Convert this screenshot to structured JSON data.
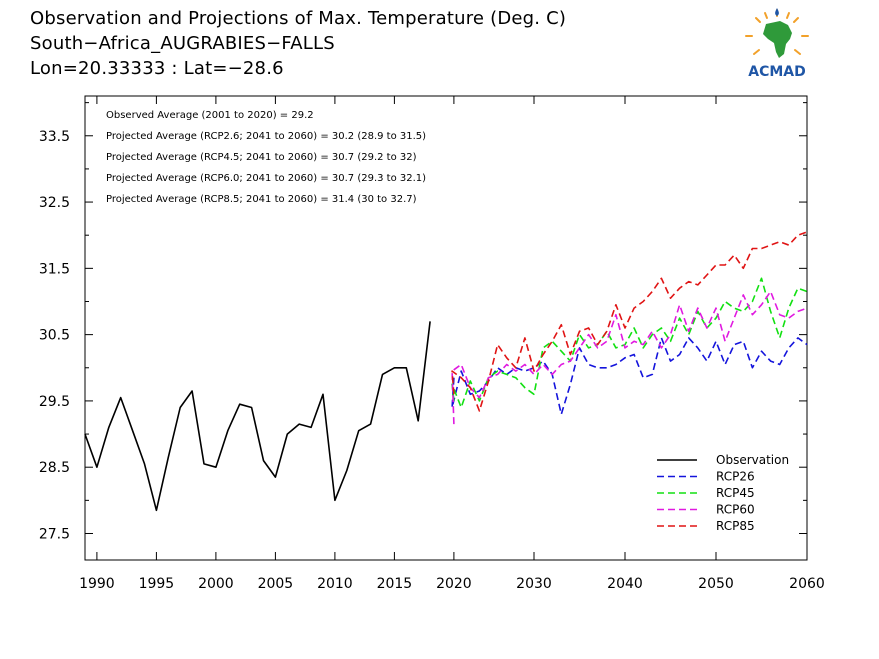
{
  "header": {
    "line1": "Observation and Projections of Max. Temperature (Deg. C)",
    "line2": "South−Africa_AUGRABIES−FALLS",
    "line3": "Lon=20.33333 : Lat=−28.6"
  },
  "logo": {
    "text": "ACMAD",
    "icon": "africa-sun-logo-icon"
  },
  "annotations": [
    "Observed Average (2001 to 2020) = 29.2",
    "Projected Average (RCP2.6; 2041 to 2060) = 30.2 (28.9 to 31.5)",
    "Projected Average (RCP4.5; 2041 to 2060) = 30.7 (29.2 to 32)",
    "Projected Average (RCP6.0; 2041 to 2060) = 30.7 (29.3 to 32.1)",
    "Projected Average (RCP8.5; 2041 to 2060) = 31.4 (30 to 32.7)"
  ],
  "chart_data": {
    "type": "line",
    "title": "Observation and Projections of Max. Temperature (Deg. C)",
    "xlabel": "",
    "ylabel": "",
    "ylim": [
      27.1,
      34.1
    ],
    "y_ticks": [
      "27.5",
      "28.5",
      "29.5",
      "30.5",
      "31.5",
      "32.5",
      "33.5"
    ],
    "x_ticks_left": [
      "1990",
      "1995",
      "2000",
      "2005",
      "2010",
      "2015",
      "2020"
    ],
    "x_ticks_right": [
      "2020",
      "2030",
      "2040",
      "2050",
      "2060"
    ],
    "legend_position": "bottom-right",
    "series": [
      {
        "name": "Observation",
        "color": "#000000",
        "style": "solid",
        "x": [
          1989,
          1990,
          1991,
          1992,
          1993,
          1994,
          1995,
          1996,
          1997,
          1998,
          1999,
          2000,
          2001,
          2002,
          2003,
          2004,
          2005,
          2006,
          2007,
          2008,
          2009,
          2010,
          2011,
          2012,
          2013,
          2014,
          2015,
          2016,
          2017,
          2018,
          2019
        ],
        "values": [
          29.0,
          28.5,
          29.1,
          29.55,
          29.05,
          28.55,
          27.85,
          28.65,
          29.4,
          29.65,
          28.55,
          28.5,
          29.05,
          29.45,
          29.4,
          28.6,
          28.35,
          29.0,
          29.15,
          29.1,
          29.6,
          28.0,
          28.45,
          29.05,
          29.15,
          29.9,
          30.0,
          30.0,
          29.2,
          30.7,
          null
        ]
      },
      {
        "name": "RCP26",
        "color": "#1414dc",
        "style": "dashed",
        "x": [
          2020,
          2021,
          2022,
          2023,
          2024,
          2025,
          2026,
          2027,
          2028,
          2029,
          2030,
          2031,
          2032,
          2033,
          2034,
          2035,
          2036,
          2037,
          2038,
          2039,
          2040,
          2041,
          2042,
          2043,
          2044,
          2045,
          2046,
          2047,
          2048,
          2049,
          2050,
          2051,
          2052,
          2053,
          2054,
          2055,
          2056,
          2057,
          2058,
          2059,
          2060
        ],
        "values": [
          29.85,
          29.4,
          29.95,
          29.6,
          29.65,
          29.8,
          30.0,
          29.9,
          30.0,
          29.95,
          30.0,
          30.1,
          29.9,
          29.3,
          29.75,
          30.3,
          30.05,
          30.0,
          30.0,
          30.05,
          30.15,
          30.2,
          29.85,
          29.9,
          30.45,
          30.1,
          30.2,
          30.45,
          30.3,
          30.1,
          30.4,
          30.05,
          30.35,
          30.4,
          30.0,
          30.25,
          30.1,
          30.05,
          30.3,
          30.45,
          30.35
        ]
      },
      {
        "name": "RCP45",
        "color": "#12e012",
        "style": "dashed",
        "x": [
          2020,
          2021,
          2022,
          2023,
          2024,
          2025,
          2026,
          2027,
          2028,
          2029,
          2030,
          2031,
          2032,
          2033,
          2034,
          2035,
          2036,
          2037,
          2038,
          2039,
          2040,
          2041,
          2042,
          2043,
          2044,
          2045,
          2046,
          2047,
          2048,
          2049,
          2050,
          2051,
          2052,
          2053,
          2054,
          2055,
          2056,
          2057,
          2058,
          2059,
          2060
        ],
        "values": [
          29.5,
          29.75,
          29.4,
          29.8,
          29.5,
          29.85,
          29.95,
          29.9,
          29.85,
          29.7,
          29.6,
          30.3,
          30.4,
          30.25,
          30.1,
          30.5,
          30.3,
          30.35,
          30.55,
          30.3,
          30.35,
          30.6,
          30.3,
          30.5,
          30.6,
          30.4,
          30.75,
          30.5,
          30.85,
          30.6,
          30.75,
          31.0,
          30.9,
          30.85,
          31.0,
          31.35,
          30.85,
          30.45,
          30.9,
          31.2,
          31.15
        ]
      },
      {
        "name": "RCP60",
        "color": "#e01ae0",
        "style": "dashed",
        "x": [
          2020,
          2021,
          2022,
          2023,
          2024,
          2025,
          2026,
          2027,
          2028,
          2029,
          2030,
          2031,
          2032,
          2033,
          2034,
          2035,
          2036,
          2037,
          2038,
          2039,
          2040,
          2041,
          2042,
          2043,
          2044,
          2045,
          2046,
          2047,
          2048,
          2049,
          2050,
          2051,
          2052,
          2053,
          2054,
          2055,
          2056,
          2057,
          2058,
          2059,
          2060
        ],
        "values": [
          29.15,
          29.95,
          30.05,
          29.7,
          29.55,
          29.85,
          29.9,
          30.05,
          29.95,
          30.05,
          29.9,
          30.05,
          29.9,
          30.05,
          30.1,
          30.3,
          30.5,
          30.3,
          30.4,
          30.8,
          30.3,
          30.4,
          30.35,
          30.55,
          30.3,
          30.5,
          30.95,
          30.55,
          30.9,
          30.6,
          30.9,
          30.4,
          30.75,
          31.1,
          30.8,
          30.95,
          31.15,
          30.8,
          30.75,
          30.85,
          30.9
        ]
      },
      {
        "name": "RCP85",
        "color": "#e01414",
        "style": "dashed",
        "x": [
          2020,
          2021,
          2022,
          2023,
          2024,
          2025,
          2026,
          2027,
          2028,
          2029,
          2030,
          2031,
          2032,
          2033,
          2034,
          2035,
          2036,
          2037,
          2038,
          2039,
          2040,
          2041,
          2042,
          2043,
          2044,
          2045,
          2046,
          2047,
          2048,
          2049,
          2050,
          2051,
          2052,
          2053,
          2054,
          2055,
          2056,
          2057,
          2058,
          2059,
          2060
        ],
        "values": [
          29.6,
          29.95,
          29.85,
          29.7,
          29.35,
          29.8,
          30.35,
          30.15,
          30.0,
          30.45,
          29.95,
          30.2,
          30.4,
          30.65,
          30.2,
          30.55,
          30.6,
          30.35,
          30.55,
          30.95,
          30.6,
          30.9,
          31.0,
          31.15,
          31.35,
          31.05,
          31.2,
          31.3,
          31.25,
          31.4,
          31.55,
          31.55,
          31.7,
          31.5,
          31.8,
          31.8,
          31.85,
          31.9,
          31.85,
          32.0,
          32.05
        ]
      }
    ]
  }
}
